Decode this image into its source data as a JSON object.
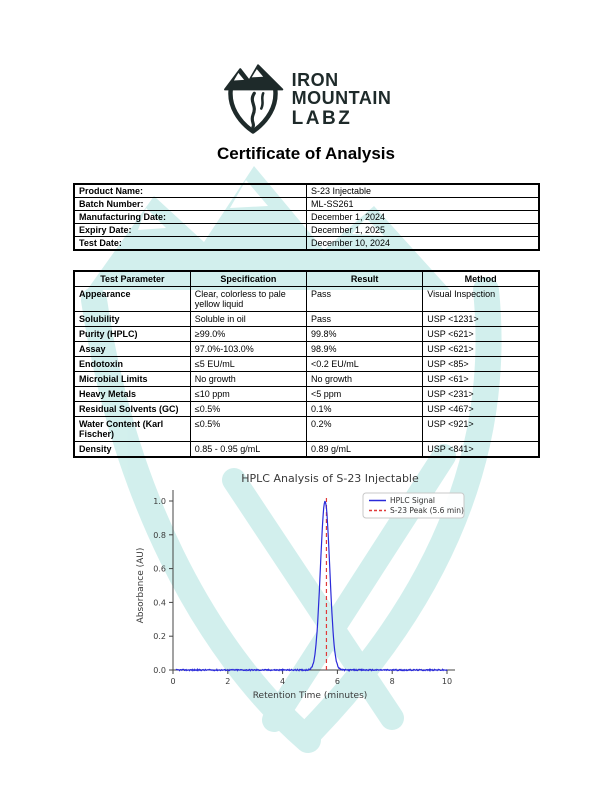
{
  "header": {
    "brand_line1": "IRON",
    "brand_line2": "MOUNTAIN",
    "brand_line3": "LABZ",
    "title": "Certificate of Analysis"
  },
  "colors": {
    "brand_dark": "#1e2a2a",
    "watermark_teal": "#aee3df",
    "signal_blue": "#2a2ad9",
    "peak_red": "#e03a3a",
    "axis_text": "#3a3a3a",
    "legend_border": "#c8c8c8"
  },
  "product_info": {
    "rows": [
      {
        "label": "Product Name:",
        "value": "S-23 Injectable"
      },
      {
        "label": "Batch Number:",
        "value": "ML-SS261"
      },
      {
        "label": "Manufacturing Date:",
        "value": "December 1, 2024"
      },
      {
        "label": "Expiry Date:",
        "value": "December 1, 2025"
      },
      {
        "label": "Test Date:",
        "value": "December 10, 2024"
      }
    ]
  },
  "results": {
    "headers": [
      "Test Parameter",
      "Specification",
      "Result",
      "Method"
    ],
    "rows": [
      [
        "Appearance",
        "Clear, colorless to pale yellow liquid",
        "Pass",
        "Visual Inspection"
      ],
      [
        "Solubility",
        "Soluble in oil",
        "Pass",
        "USP <1231>"
      ],
      [
        "Purity (HPLC)",
        "≥99.0%",
        "99.8%",
        "USP <621>"
      ],
      [
        "Assay",
        "97.0%-103.0%",
        "98.9%",
        "USP <621>"
      ],
      [
        "Endotoxin",
        "≤5 EU/mL",
        "<0.2 EU/mL",
        "USP <85>"
      ],
      [
        "Microbial Limits",
        "No growth",
        "No growth",
        "USP <61>"
      ],
      [
        "Heavy Metals",
        "≤10 ppm",
        "<5 ppm",
        "USP <231>"
      ],
      [
        "Residual Solvents (GC)",
        "≤0.5%",
        "0.1%",
        "USP <467>"
      ],
      [
        "Water Content (Karl Fischer)",
        "≤0.5%",
        "0.2%",
        "USP <921>"
      ],
      [
        "Density",
        "0.85 - 0.95 g/mL",
        "0.89 g/mL",
        "USP <841>"
      ]
    ]
  },
  "chart_data": {
    "type": "line",
    "title": "HPLC Analysis of S-23 Injectable",
    "xlabel": "Retention Time (minutes)",
    "ylabel": "Absorbance (AU)",
    "xlim": [
      0,
      10
    ],
    "ylim": [
      0,
      1.05
    ],
    "x_ticks": [
      0,
      2,
      4,
      6,
      8,
      10
    ],
    "y_ticks": [
      0.0,
      0.2,
      0.4,
      0.6,
      0.8,
      1.0
    ],
    "grid": false,
    "legend_position": "upper right",
    "series": [
      {
        "name": "HPLC Signal",
        "color": "#2a2ad9",
        "model": "gaussian",
        "peak_center": 5.55,
        "peak_sigma": 0.17,
        "peak_amplitude": 1.0,
        "baseline": 0.0,
        "noise_amplitude": 0.004,
        "x_start": 0.1,
        "x_end": 10.0
      }
    ],
    "markers": [
      {
        "name": "S-23 Peak (5.6 min)",
        "x": 5.6,
        "color": "#e03a3a",
        "style": "dashed"
      }
    ]
  }
}
